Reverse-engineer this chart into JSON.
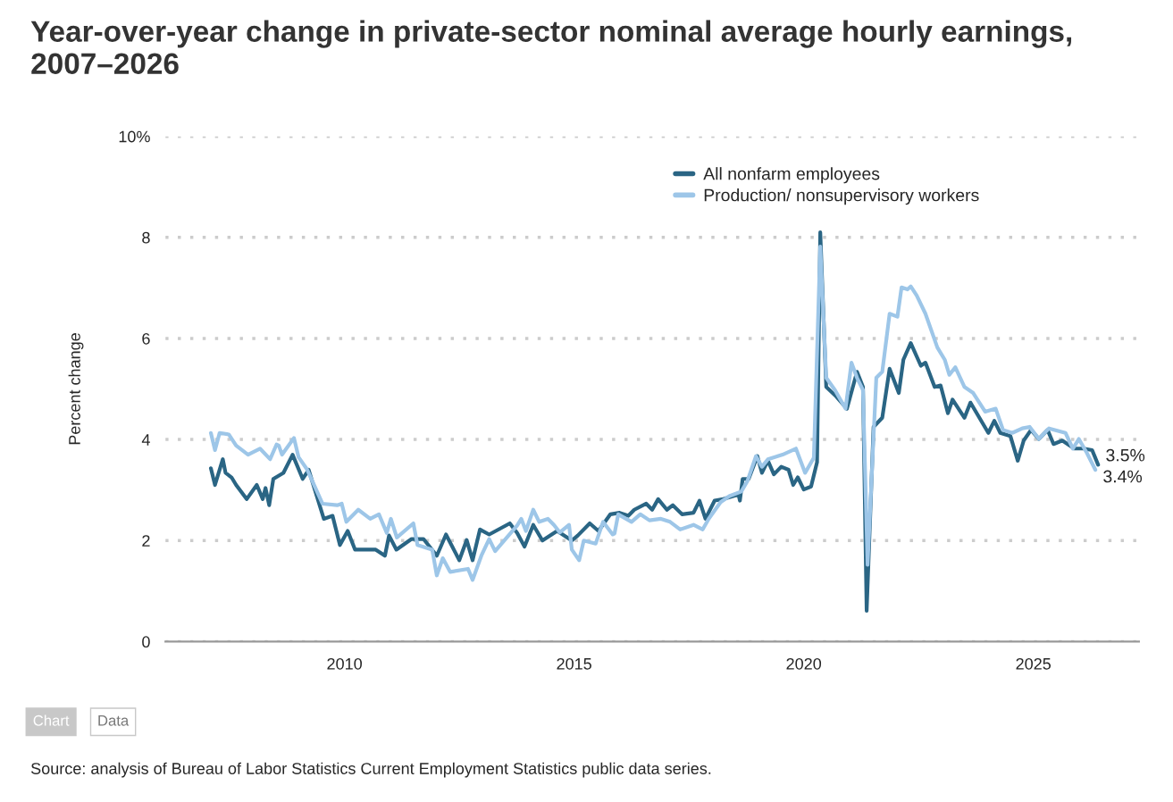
{
  "chart_data": {
    "type": "line",
    "title": "Year-over-year change in private-sector nominal average hourly earnings, 2007–2026",
    "ylabel": "Percent change",
    "xlim": [
      2006.1,
      2027.3
    ],
    "xticks": [
      2010,
      2015,
      2020,
      2025
    ],
    "ylim": [
      0,
      10
    ],
    "yticks": [
      0,
      2,
      4,
      6,
      8,
      {
        "value": 10,
        "label": "10%"
      }
    ],
    "grid": "y",
    "legend": "top",
    "line_style": "solid",
    "series": [
      {
        "name": "All nonfarm employees",
        "color": "#2a6584",
        "x": [
          2007.09,
          2007.18,
          2007.35,
          2007.41,
          2007.54,
          2007.64,
          2007.87,
          2008.09,
          2008.22,
          2008.28,
          2008.36,
          2008.45,
          2008.67,
          2008.87,
          2009.09,
          2009.22,
          2009.55,
          2009.74,
          2009.9,
          2010.07,
          2010.23,
          2010.68,
          2010.88,
          2010.97,
          2011.13,
          2011.46,
          2011.72,
          2012.01,
          2012.21,
          2012.5,
          2012.66,
          2012.79,
          2012.95,
          2013.15,
          2013.6,
          2013.76,
          2013.92,
          2014.11,
          2014.31,
          2014.63,
          2014.95,
          2015.08,
          2015.34,
          2015.53,
          2015.79,
          2015.99,
          2016.18,
          2016.31,
          2016.57,
          2016.7,
          2016.83,
          2017.02,
          2017.15,
          2017.35,
          2017.6,
          2017.73,
          2017.86,
          2018.06,
          2018.25,
          2018.58,
          2018.61,
          2018.67,
          2018.8,
          2018.99,
          2019.09,
          2019.22,
          2019.35,
          2019.51,
          2019.67,
          2019.77,
          2019.87,
          2020.0,
          2020.16,
          2020.29,
          2020.36,
          2020.49,
          2020.71,
          2020.94,
          2021.16,
          2021.29,
          2021.37,
          2021.52,
          2021.71,
          2021.87,
          2022.07,
          2022.17,
          2022.33,
          2022.55,
          2022.65,
          2022.85,
          2022.98,
          2023.14,
          2023.24,
          2023.5,
          2023.63,
          2024.02,
          2024.15,
          2024.28,
          2024.5,
          2024.66,
          2024.79,
          2024.95,
          2025.12,
          2025.31,
          2025.44,
          2025.63,
          2025.89,
          2026.09,
          2026.28,
          2026.41
        ],
        "values": [
          3.43,
          3.1,
          3.61,
          3.34,
          3.25,
          3.1,
          2.82,
          3.1,
          2.82,
          3.04,
          2.7,
          3.22,
          3.34,
          3.7,
          3.22,
          3.4,
          2.43,
          2.49,
          1.91,
          2.19,
          1.82,
          1.82,
          1.7,
          2.1,
          1.82,
          2.03,
          2.03,
          1.7,
          2.12,
          1.61,
          2.01,
          1.61,
          2.22,
          2.12,
          2.34,
          2.15,
          1.88,
          2.31,
          2.0,
          2.19,
          2.0,
          2.1,
          2.34,
          2.19,
          2.52,
          2.55,
          2.49,
          2.61,
          2.73,
          2.61,
          2.82,
          2.61,
          2.7,
          2.52,
          2.55,
          2.79,
          2.43,
          2.79,
          2.82,
          2.91,
          2.79,
          3.22,
          3.22,
          3.67,
          3.34,
          3.58,
          3.31,
          3.46,
          3.4,
          3.1,
          3.25,
          3.01,
          3.07,
          3.55,
          8.1,
          5.04,
          4.85,
          4.61,
          5.34,
          5.04,
          0.61,
          4.25,
          4.43,
          5.4,
          4.92,
          5.58,
          5.91,
          5.46,
          5.52,
          5.04,
          5.07,
          4.52,
          4.79,
          4.43,
          4.73,
          4.13,
          4.37,
          4.13,
          4.07,
          3.58,
          3.98,
          4.19,
          4.01,
          4.19,
          3.91,
          3.98,
          3.82,
          3.82,
          3.79,
          3.5
        ]
      },
      {
        "name": "Production/ nonsupervisory workers",
        "color": "#9dc6e8",
        "x": [
          2007.09,
          2007.18,
          2007.28,
          2007.48,
          2007.64,
          2007.9,
          2008.16,
          2008.38,
          2008.52,
          2008.57,
          2008.64,
          2008.9,
          2009.0,
          2009.19,
          2009.52,
          2009.84,
          2009.94,
          2010.04,
          2010.3,
          2010.56,
          2010.75,
          2010.92,
          2011.01,
          2011.14,
          2011.5,
          2011.59,
          2011.91,
          2012.01,
          2012.14,
          2012.3,
          2012.69,
          2012.79,
          2012.98,
          2013.15,
          2013.28,
          2013.76,
          2013.85,
          2013.95,
          2014.11,
          2014.24,
          2014.43,
          2014.56,
          2014.69,
          2014.89,
          2014.95,
          2015.11,
          2015.21,
          2015.47,
          2015.63,
          2015.84,
          2015.88,
          2015.96,
          2016.25,
          2016.44,
          2016.64,
          2016.89,
          2017.09,
          2017.31,
          2017.6,
          2017.8,
          2017.93,
          2018.19,
          2018.38,
          2018.64,
          2018.77,
          2018.96,
          2019.09,
          2019.22,
          2019.54,
          2019.83,
          2020.03,
          2020.22,
          2020.36,
          2020.49,
          2020.68,
          2020.91,
          2021.04,
          2021.16,
          2021.29,
          2021.39,
          2021.58,
          2021.71,
          2021.87,
          2022.04,
          2022.13,
          2022.26,
          2022.33,
          2022.46,
          2022.65,
          2022.91,
          2023.07,
          2023.17,
          2023.3,
          2023.5,
          2023.69,
          2023.95,
          2024.18,
          2024.34,
          2024.54,
          2024.76,
          2024.92,
          2025.12,
          2025.34,
          2025.7,
          2025.86,
          2025.99,
          2026.15,
          2026.35
        ],
        "values": [
          4.13,
          3.79,
          4.13,
          4.1,
          3.88,
          3.7,
          3.82,
          3.61,
          3.9,
          3.88,
          3.7,
          4.03,
          3.65,
          3.4,
          2.73,
          2.7,
          2.73,
          2.37,
          2.61,
          2.43,
          2.52,
          2.15,
          2.43,
          2.06,
          2.34,
          1.91,
          1.82,
          1.31,
          1.65,
          1.38,
          1.44,
          1.22,
          1.7,
          2.03,
          1.79,
          2.3,
          2.43,
          2.19,
          2.61,
          2.37,
          2.43,
          2.31,
          2.16,
          2.31,
          1.82,
          1.61,
          2.0,
          1.94,
          2.37,
          2.12,
          2.14,
          2.52,
          2.37,
          2.52,
          2.4,
          2.43,
          2.37,
          2.22,
          2.31,
          2.22,
          2.43,
          2.76,
          2.88,
          2.97,
          3.17,
          3.67,
          3.46,
          3.61,
          3.7,
          3.82,
          3.34,
          3.64,
          7.82,
          5.22,
          4.98,
          4.61,
          5.52,
          5.22,
          4.98,
          1.52,
          5.22,
          5.34,
          6.49,
          6.43,
          7.01,
          6.97,
          7.03,
          6.85,
          6.49,
          5.82,
          5.58,
          5.28,
          5.43,
          5.04,
          4.92,
          4.55,
          4.61,
          4.19,
          4.13,
          4.22,
          4.25,
          4.01,
          4.22,
          4.13,
          3.82,
          4.01,
          3.76,
          3.4
        ]
      }
    ],
    "annotations": [
      {
        "text": "3.5%",
        "x": 2026.41,
        "y": 3.5
      },
      {
        "text": "3.4%",
        "x": 2026.35,
        "y": 3.4
      },
      "Chart",
      "Data",
      "Source: analysis of Bureau of Labor Statistics Current Employment Statistics public data series."
    ]
  }
}
